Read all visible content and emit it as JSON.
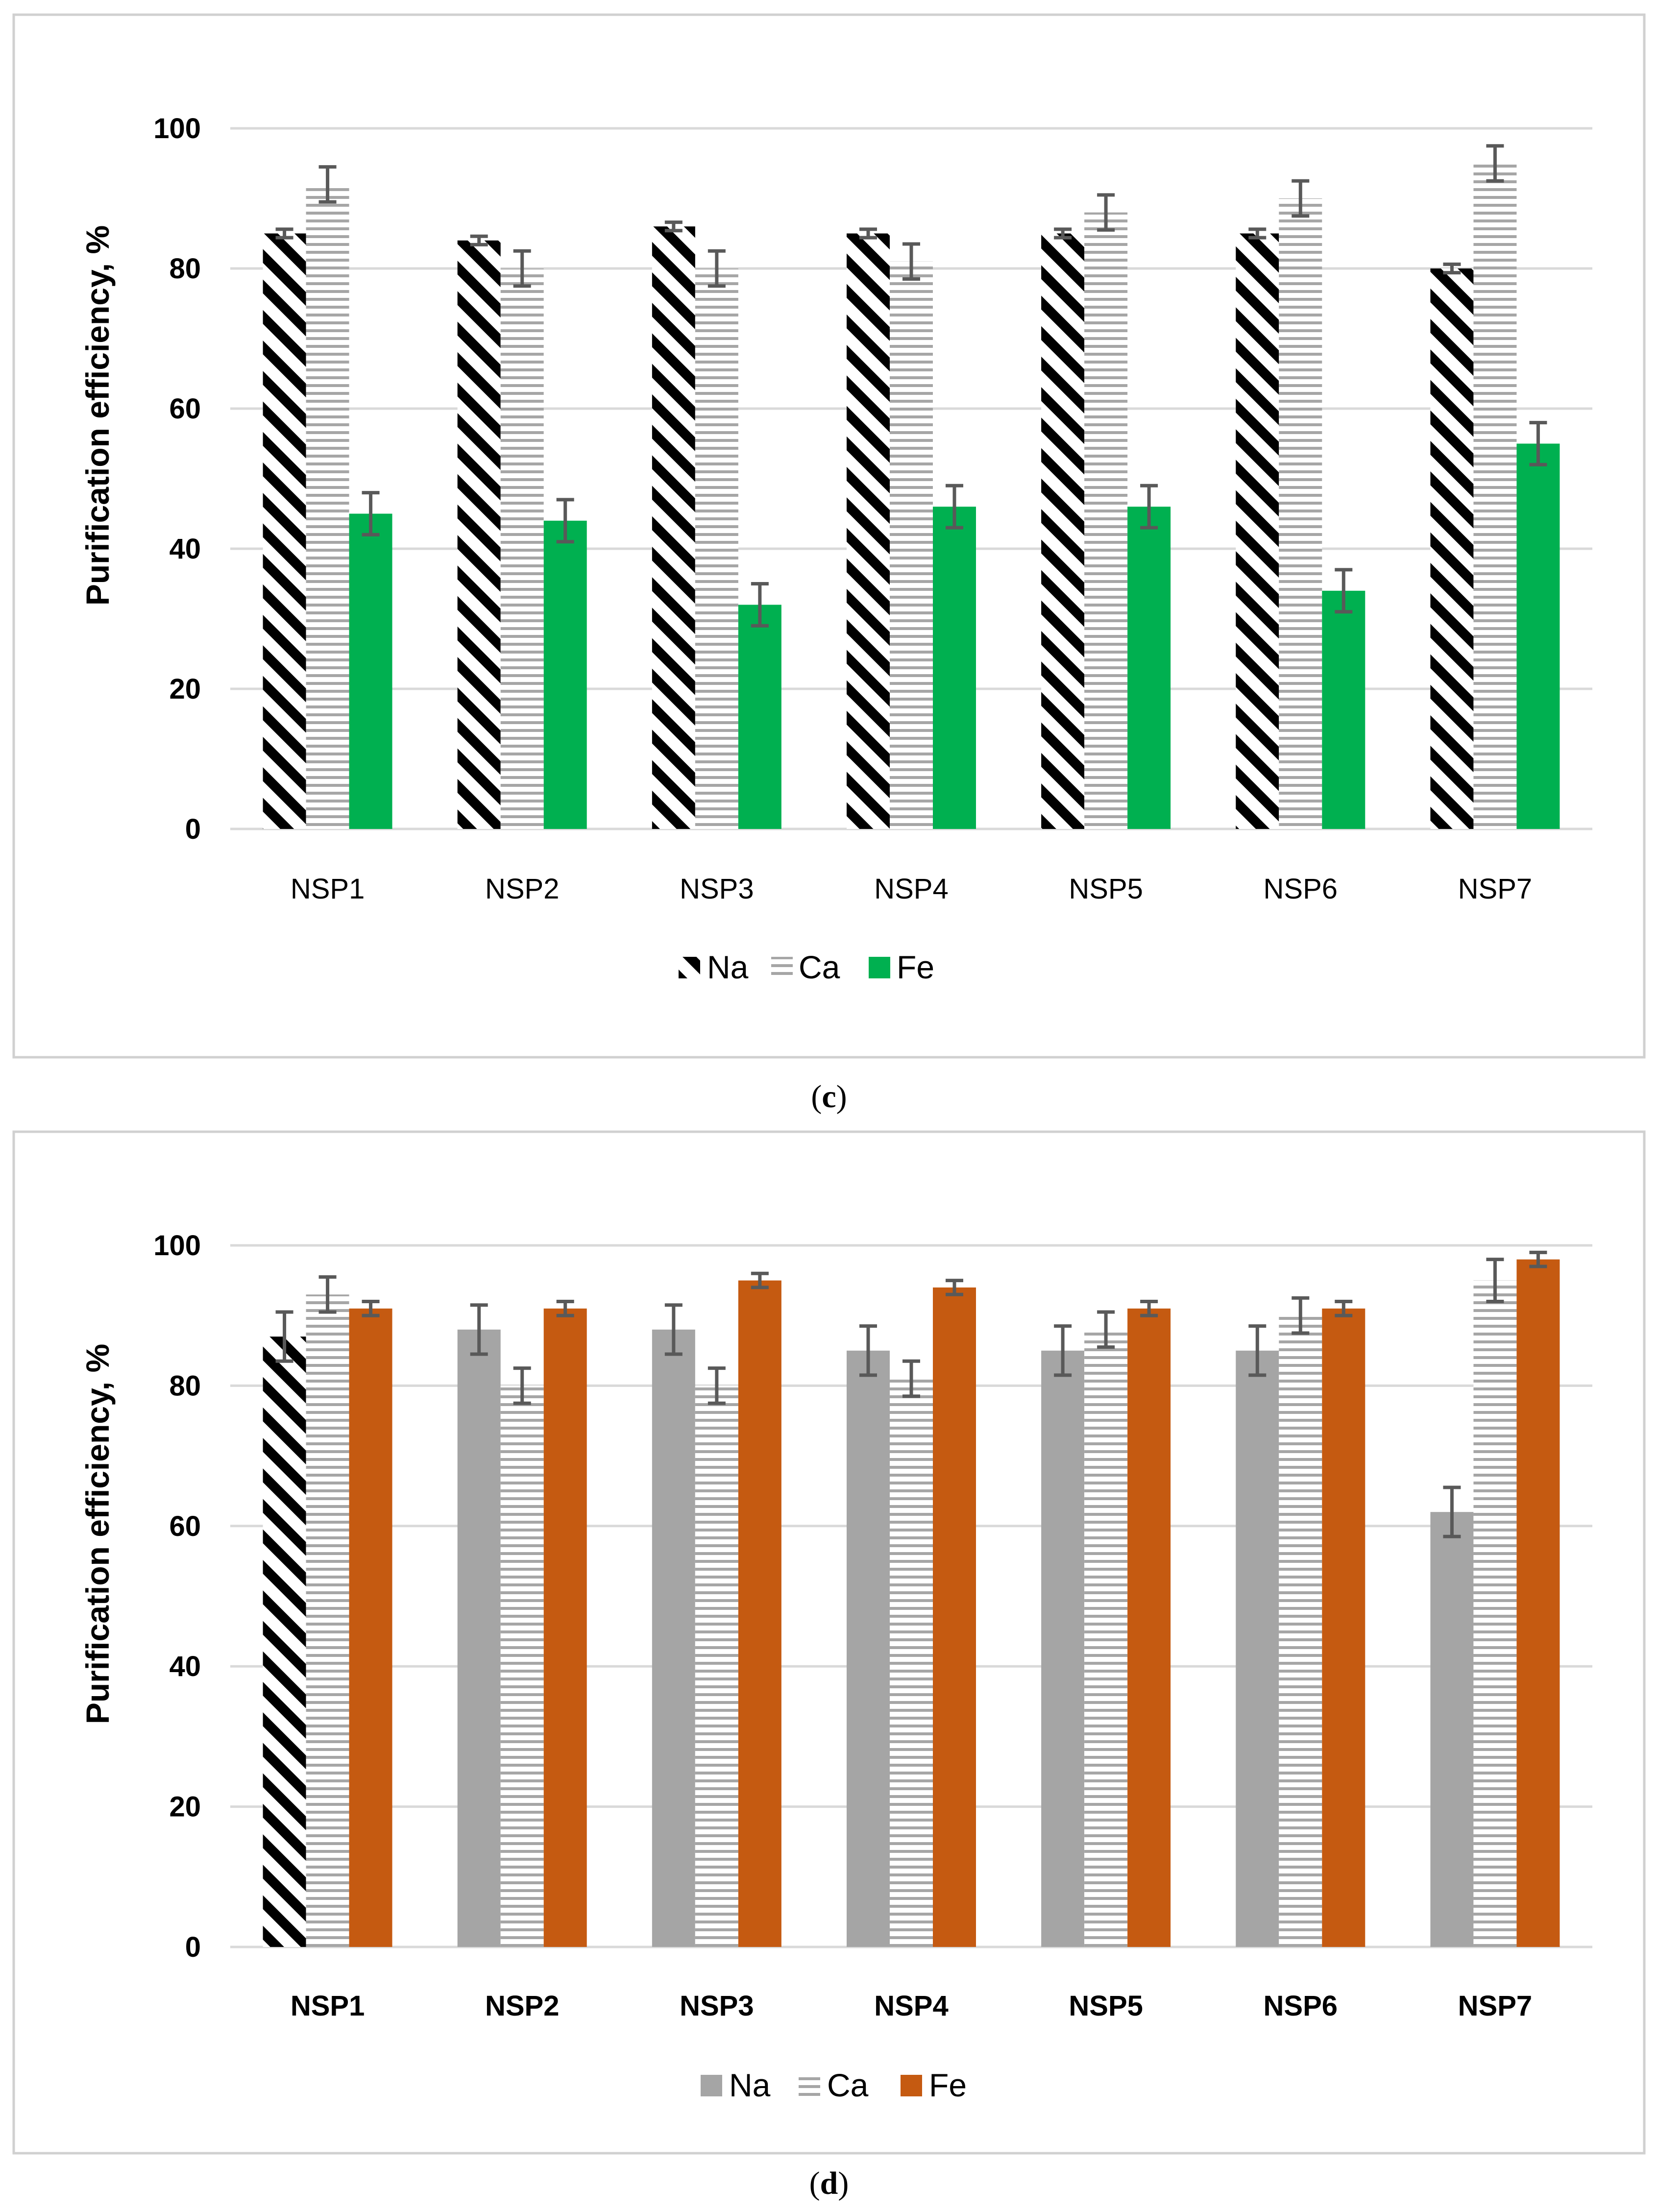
{
  "colors": {
    "na_hatch": "#000000",
    "ca_stripe": "#a6a6a6",
    "fe_green": "#00b050",
    "na_grey": "#a5a5a5",
    "fe_orange": "#c55a11",
    "error_bar": "#595959"
  },
  "chart_data": [
    {
      "type": "bar",
      "panel": "c",
      "caption_open": "(",
      "caption_letter": "c",
      "caption_close": ")",
      "ylabel": "Purification efficiency, %",
      "xlabel": "",
      "ylim": [
        0,
        100
      ],
      "yticks": [
        "0",
        "20",
        "40",
        "60",
        "80",
        "100"
      ],
      "grid": true,
      "legend_position": "bottom",
      "category_labels_bold": false,
      "categories": [
        "NSP1",
        "NSP2",
        "NSP3",
        "NSP4",
        "NSP5",
        "NSP6",
        "NSP7"
      ],
      "series": [
        {
          "name": "Na",
          "fill": "diagonal-hatch",
          "values": [
            85,
            84,
            86,
            85,
            85,
            85,
            80
          ],
          "errors": [
            0.6,
            0.6,
            0.6,
            0.6,
            0.6,
            0.6,
            0.6
          ]
        },
        {
          "name": "Ca",
          "fill": "horizontal-stripes",
          "values": [
            92,
            80,
            80,
            81,
            88,
            90,
            95
          ],
          "errors": [
            2.5,
            2.5,
            2.5,
            2.5,
            2.5,
            2.5,
            2.5
          ]
        },
        {
          "name": "Fe",
          "fill": "solid-green",
          "values": [
            45,
            44,
            32,
            46,
            46,
            34,
            55
          ],
          "errors": [
            3,
            3,
            3,
            3,
            3,
            3,
            3
          ]
        }
      ]
    },
    {
      "type": "bar",
      "panel": "d",
      "caption_open": "(",
      "caption_letter": "d",
      "caption_close": ")",
      "ylabel": "Purification efficiency, %",
      "xlabel": "",
      "ylim": [
        0,
        100
      ],
      "yticks": [
        "0",
        "20",
        "40",
        "60",
        "80",
        "100"
      ],
      "grid": true,
      "legend_position": "bottom",
      "category_labels_bold": true,
      "categories": [
        "NSP1",
        "NSP2",
        "NSP3",
        "NSP4",
        "NSP5",
        "NSP6",
        "NSP7"
      ],
      "series": [
        {
          "name": "Na",
          "fill": "solid-grey",
          "first_bar_fill": "diagonal-hatch",
          "values": [
            87,
            88,
            88,
            85,
            85,
            85,
            62
          ],
          "errors": [
            3.5,
            3.5,
            3.5,
            3.5,
            3.5,
            3.5,
            3.5
          ]
        },
        {
          "name": "Ca",
          "fill": "horizontal-stripes",
          "values": [
            93,
            80,
            80,
            81,
            88,
            90,
            95
          ],
          "errors": [
            2.5,
            2.5,
            2.5,
            2.5,
            2.5,
            2.5,
            3
          ]
        },
        {
          "name": "Fe",
          "fill": "solid-orange",
          "values": [
            91,
            91,
            95,
            94,
            91,
            91,
            98
          ],
          "errors": [
            1,
            1,
            1,
            1,
            1,
            1,
            1
          ]
        }
      ]
    }
  ]
}
